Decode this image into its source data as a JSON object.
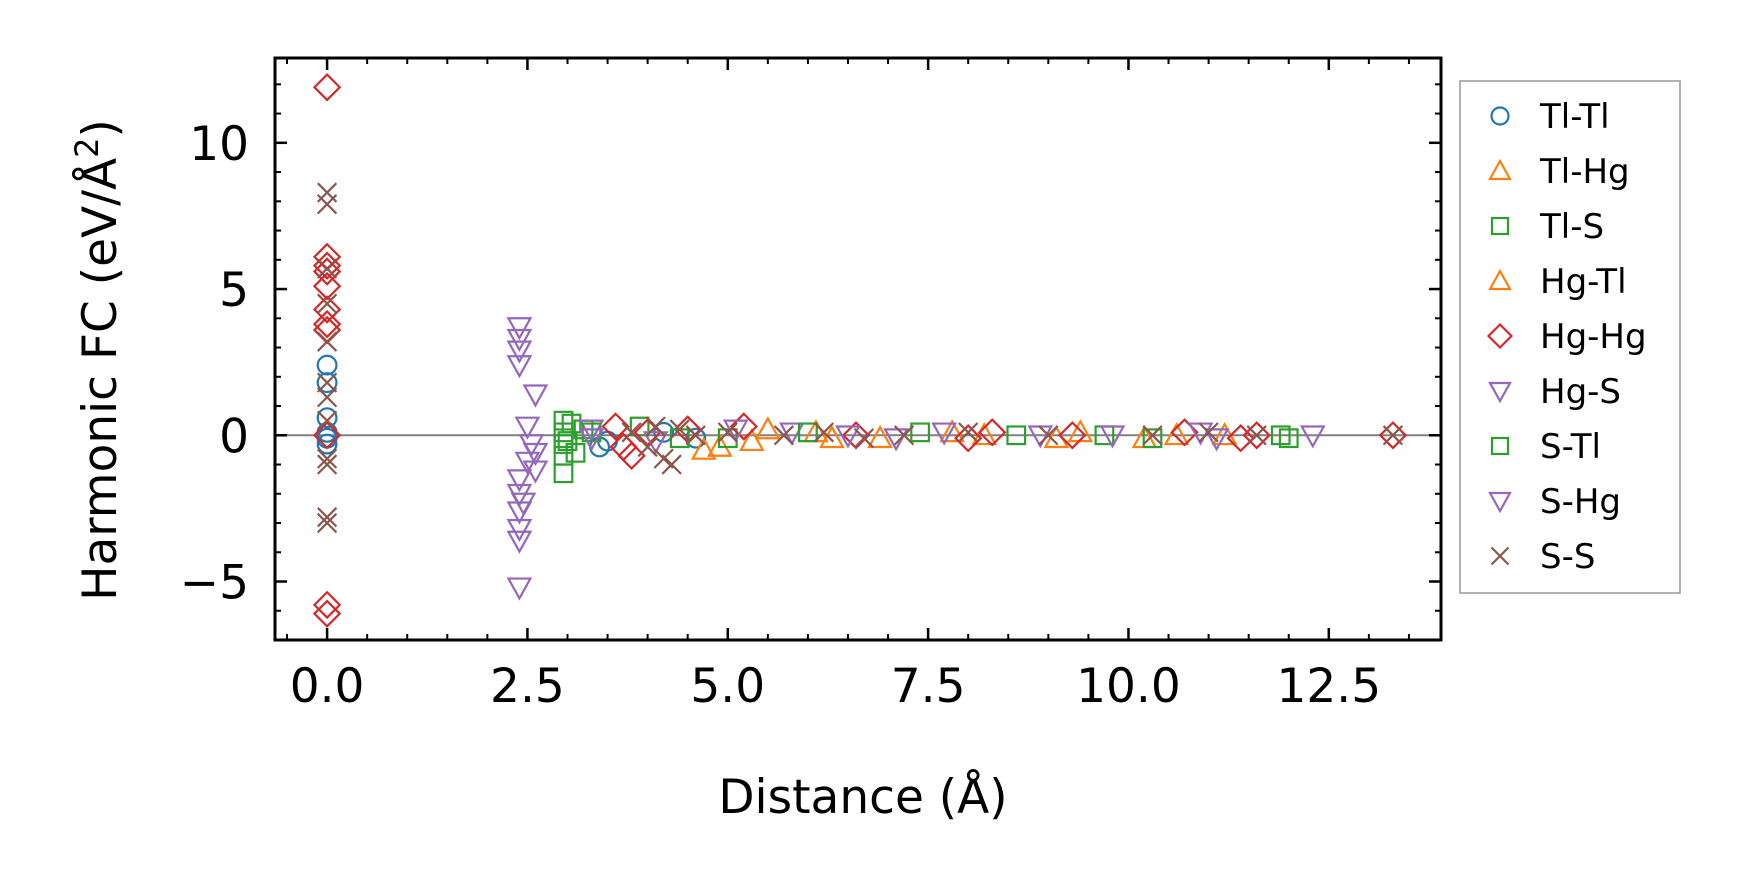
{
  "chart_data": {
    "type": "scatter",
    "xlabel": "Distance (Å)",
    "ylabel": "Harmonic FC (eV/Å",
    "ylabel_sup": "2",
    "ylabel_end": ")",
    "xlim": [
      -0.65,
      13.9
    ],
    "ylim": [
      -7.0,
      12.9
    ],
    "xticks": [
      0,
      2.5,
      5,
      7.5,
      10,
      12.5
    ],
    "xtick_labels": [
      "0.0",
      "2.5",
      "5.0",
      "7.5",
      "10.0",
      "12.5"
    ],
    "yticks": [
      -5,
      0,
      5,
      10
    ],
    "ytick_labels": [
      "−5",
      "0",
      "5",
      "10"
    ],
    "zero_line": true,
    "legend_position": "outside-right",
    "series": [
      {
        "name": "Tl-Tl",
        "marker": "circle",
        "color": "#1f77b4",
        "points": [
          [
            0,
            2.4
          ],
          [
            0,
            1.8
          ],
          [
            0,
            0.6
          ],
          [
            0,
            0.1
          ],
          [
            0,
            -0.1
          ],
          [
            0,
            -0.3
          ],
          [
            3.4,
            -0.4
          ],
          [
            3.5,
            -0.2
          ],
          [
            4.2,
            0.1
          ],
          [
            4.6,
            -0.1
          ]
        ]
      },
      {
        "name": "Tl-Hg",
        "marker": "triangle-up",
        "color": "#ff7f0e",
        "points": [
          [
            4.9,
            -0.4
          ],
          [
            5.3,
            -0.2
          ],
          [
            6.1,
            0.1
          ],
          [
            6.9,
            -0.1
          ],
          [
            8.2,
            0.0
          ],
          [
            9.4,
            0.1
          ],
          [
            10.2,
            -0.1
          ],
          [
            11.2,
            0.0
          ]
        ]
      },
      {
        "name": "Tl-S",
        "marker": "square",
        "color": "#2ca02c",
        "points": [
          [
            2.95,
            0.5
          ],
          [
            2.95,
            0.1
          ],
          [
            2.95,
            -0.3
          ],
          [
            2.95,
            -0.7
          ],
          [
            2.95,
            -1.3
          ],
          [
            3.05,
            0.4
          ],
          [
            3.1,
            -0.6
          ],
          [
            3.2,
            0.2
          ],
          [
            3.9,
            0.3
          ],
          [
            5.0,
            -0.1
          ],
          [
            7.4,
            0.1
          ],
          [
            9.7,
            0.0
          ],
          [
            12.0,
            -0.1
          ]
        ]
      },
      {
        "name": "Hg-Tl",
        "marker": "triangle-up",
        "color": "#ff7f0e",
        "points": [
          [
            4.7,
            -0.5
          ],
          [
            5.5,
            0.2
          ],
          [
            6.3,
            -0.1
          ],
          [
            7.8,
            0.1
          ],
          [
            9.1,
            -0.1
          ],
          [
            10.6,
            0.0
          ]
        ]
      },
      {
        "name": "Hg-Hg",
        "marker": "diamond",
        "color": "#d62728",
        "points": [
          [
            0,
            11.9
          ],
          [
            0,
            6.1
          ],
          [
            0,
            5.8
          ],
          [
            0,
            5.6
          ],
          [
            0,
            5.1
          ],
          [
            0,
            4.3
          ],
          [
            0,
            3.8
          ],
          [
            0,
            3.6
          ],
          [
            0,
            0.0
          ],
          [
            0,
            -5.8
          ],
          [
            0,
            -6.1
          ],
          [
            3.6,
            0.3
          ],
          [
            3.7,
            -0.4
          ],
          [
            3.8,
            -0.7
          ],
          [
            4.0,
            0.1
          ],
          [
            4.5,
            0.2
          ],
          [
            5.2,
            0.3
          ],
          [
            6.6,
            0.0
          ],
          [
            8.0,
            -0.1
          ],
          [
            8.3,
            0.1
          ],
          [
            9.3,
            0.0
          ],
          [
            10.7,
            0.1
          ],
          [
            11.4,
            -0.1
          ],
          [
            11.6,
            0.0
          ],
          [
            13.3,
            0.0
          ]
        ]
      },
      {
        "name": "Hg-S",
        "marker": "triangle-down",
        "color": "#9467bd",
        "points": [
          [
            2.4,
            3.7
          ],
          [
            2.4,
            3.3
          ],
          [
            2.4,
            2.9
          ],
          [
            2.4,
            2.4
          ],
          [
            2.4,
            -1.5
          ],
          [
            2.4,
            -2.0
          ],
          [
            2.4,
            -2.6
          ],
          [
            2.4,
            -3.2
          ],
          [
            2.4,
            -3.6
          ],
          [
            2.4,
            -5.2
          ],
          [
            2.5,
            0.3
          ],
          [
            2.5,
            -0.9
          ],
          [
            2.6,
            1.4
          ],
          [
            2.6,
            -0.6
          ],
          [
            2.6,
            -1.2
          ],
          [
            3.3,
            0.2
          ],
          [
            4.1,
            -0.2
          ],
          [
            5.8,
            0.1
          ],
          [
            7.1,
            -0.1
          ],
          [
            8.9,
            0.0
          ],
          [
            10.9,
            0.1
          ],
          [
            12.3,
            0.0
          ]
        ]
      },
      {
        "name": "S-Tl",
        "marker": "square",
        "color": "#2ca02c",
        "points": [
          [
            3.0,
            -0.2
          ],
          [
            3.3,
            0.1
          ],
          [
            4.4,
            -0.1
          ],
          [
            6.0,
            0.1
          ],
          [
            8.6,
            0.0
          ],
          [
            10.3,
            -0.1
          ],
          [
            11.9,
            0.0
          ]
        ]
      },
      {
        "name": "S-Hg",
        "marker": "triangle-down",
        "color": "#9467bd",
        "points": [
          [
            2.45,
            -2.3
          ],
          [
            2.55,
            -0.3
          ],
          [
            3.3,
            -0.1
          ],
          [
            5.1,
            0.2
          ],
          [
            6.5,
            0.0
          ],
          [
            7.7,
            0.1
          ],
          [
            9.8,
            0.0
          ],
          [
            11.1,
            -0.1
          ]
        ]
      },
      {
        "name": "S-S",
        "marker": "x",
        "color": "#8c564b",
        "points": [
          [
            0,
            8.3
          ],
          [
            0,
            7.9
          ],
          [
            0,
            5.7
          ],
          [
            0,
            4.5
          ],
          [
            0,
            3.2
          ],
          [
            0,
            1.8
          ],
          [
            0,
            1.3
          ],
          [
            0,
            0.5
          ],
          [
            0,
            -0.8
          ],
          [
            0,
            -1.0
          ],
          [
            0,
            -2.8
          ],
          [
            0,
            -3.0
          ],
          [
            3.8,
            0.1
          ],
          [
            4.0,
            -0.4
          ],
          [
            4.1,
            0.3
          ],
          [
            4.2,
            -0.8
          ],
          [
            4.3,
            -1.0
          ],
          [
            4.4,
            0.2
          ],
          [
            4.6,
            0.0
          ],
          [
            5.0,
            0.1
          ],
          [
            5.7,
            0.0
          ],
          [
            6.2,
            0.1
          ],
          [
            6.7,
            -0.1
          ],
          [
            7.2,
            0.0
          ],
          [
            8.0,
            0.1
          ],
          [
            9.0,
            0.0
          ],
          [
            10.3,
            0.0
          ],
          [
            11.0,
            0.1
          ],
          [
            11.6,
            0.0
          ],
          [
            13.3,
            0.0
          ]
        ]
      }
    ]
  }
}
